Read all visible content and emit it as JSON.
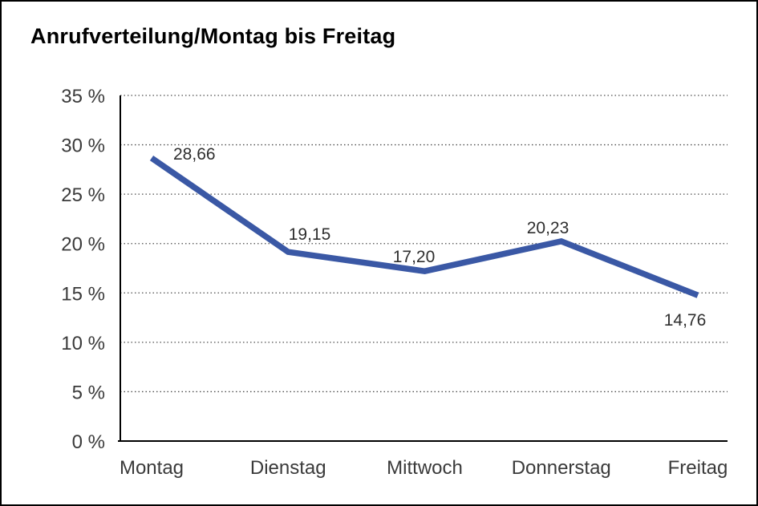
{
  "chart_data": {
    "type": "line",
    "title": "Anrufverteilung/Montag bis Freitag",
    "categories": [
      "Montag",
      "Dienstag",
      "Mittwoch",
      "Donnerstag",
      "Freitag"
    ],
    "values": [
      28.66,
      19.15,
      17.2,
      20.23,
      14.76
    ],
    "value_labels": [
      "28,66",
      "19,15",
      "17,20",
      "20,23",
      "14,76"
    ],
    "yticks": [
      {
        "value": 0,
        "label": "0 %"
      },
      {
        "value": 5,
        "label": "5 %"
      },
      {
        "value": 10,
        "label": "10 %"
      },
      {
        "value": 15,
        "label": "15 %"
      },
      {
        "value": 20,
        "label": "20 %"
      },
      {
        "value": 25,
        "label": "25 %"
      },
      {
        "value": 30,
        "label": "30 %"
      },
      {
        "value": 35,
        "label": "35 %"
      }
    ],
    "ylim": [
      0,
      35
    ],
    "xlabel": "",
    "ylabel": "",
    "grid": "dotted-horizontal",
    "legend": "none",
    "colors": {
      "line": "#3a58a5",
      "grid": "#4d4d4d",
      "axis": "#000000",
      "tick_text": "#3a3a3a",
      "value_text": "#2e2e2e",
      "background": "#ffffff"
    }
  }
}
